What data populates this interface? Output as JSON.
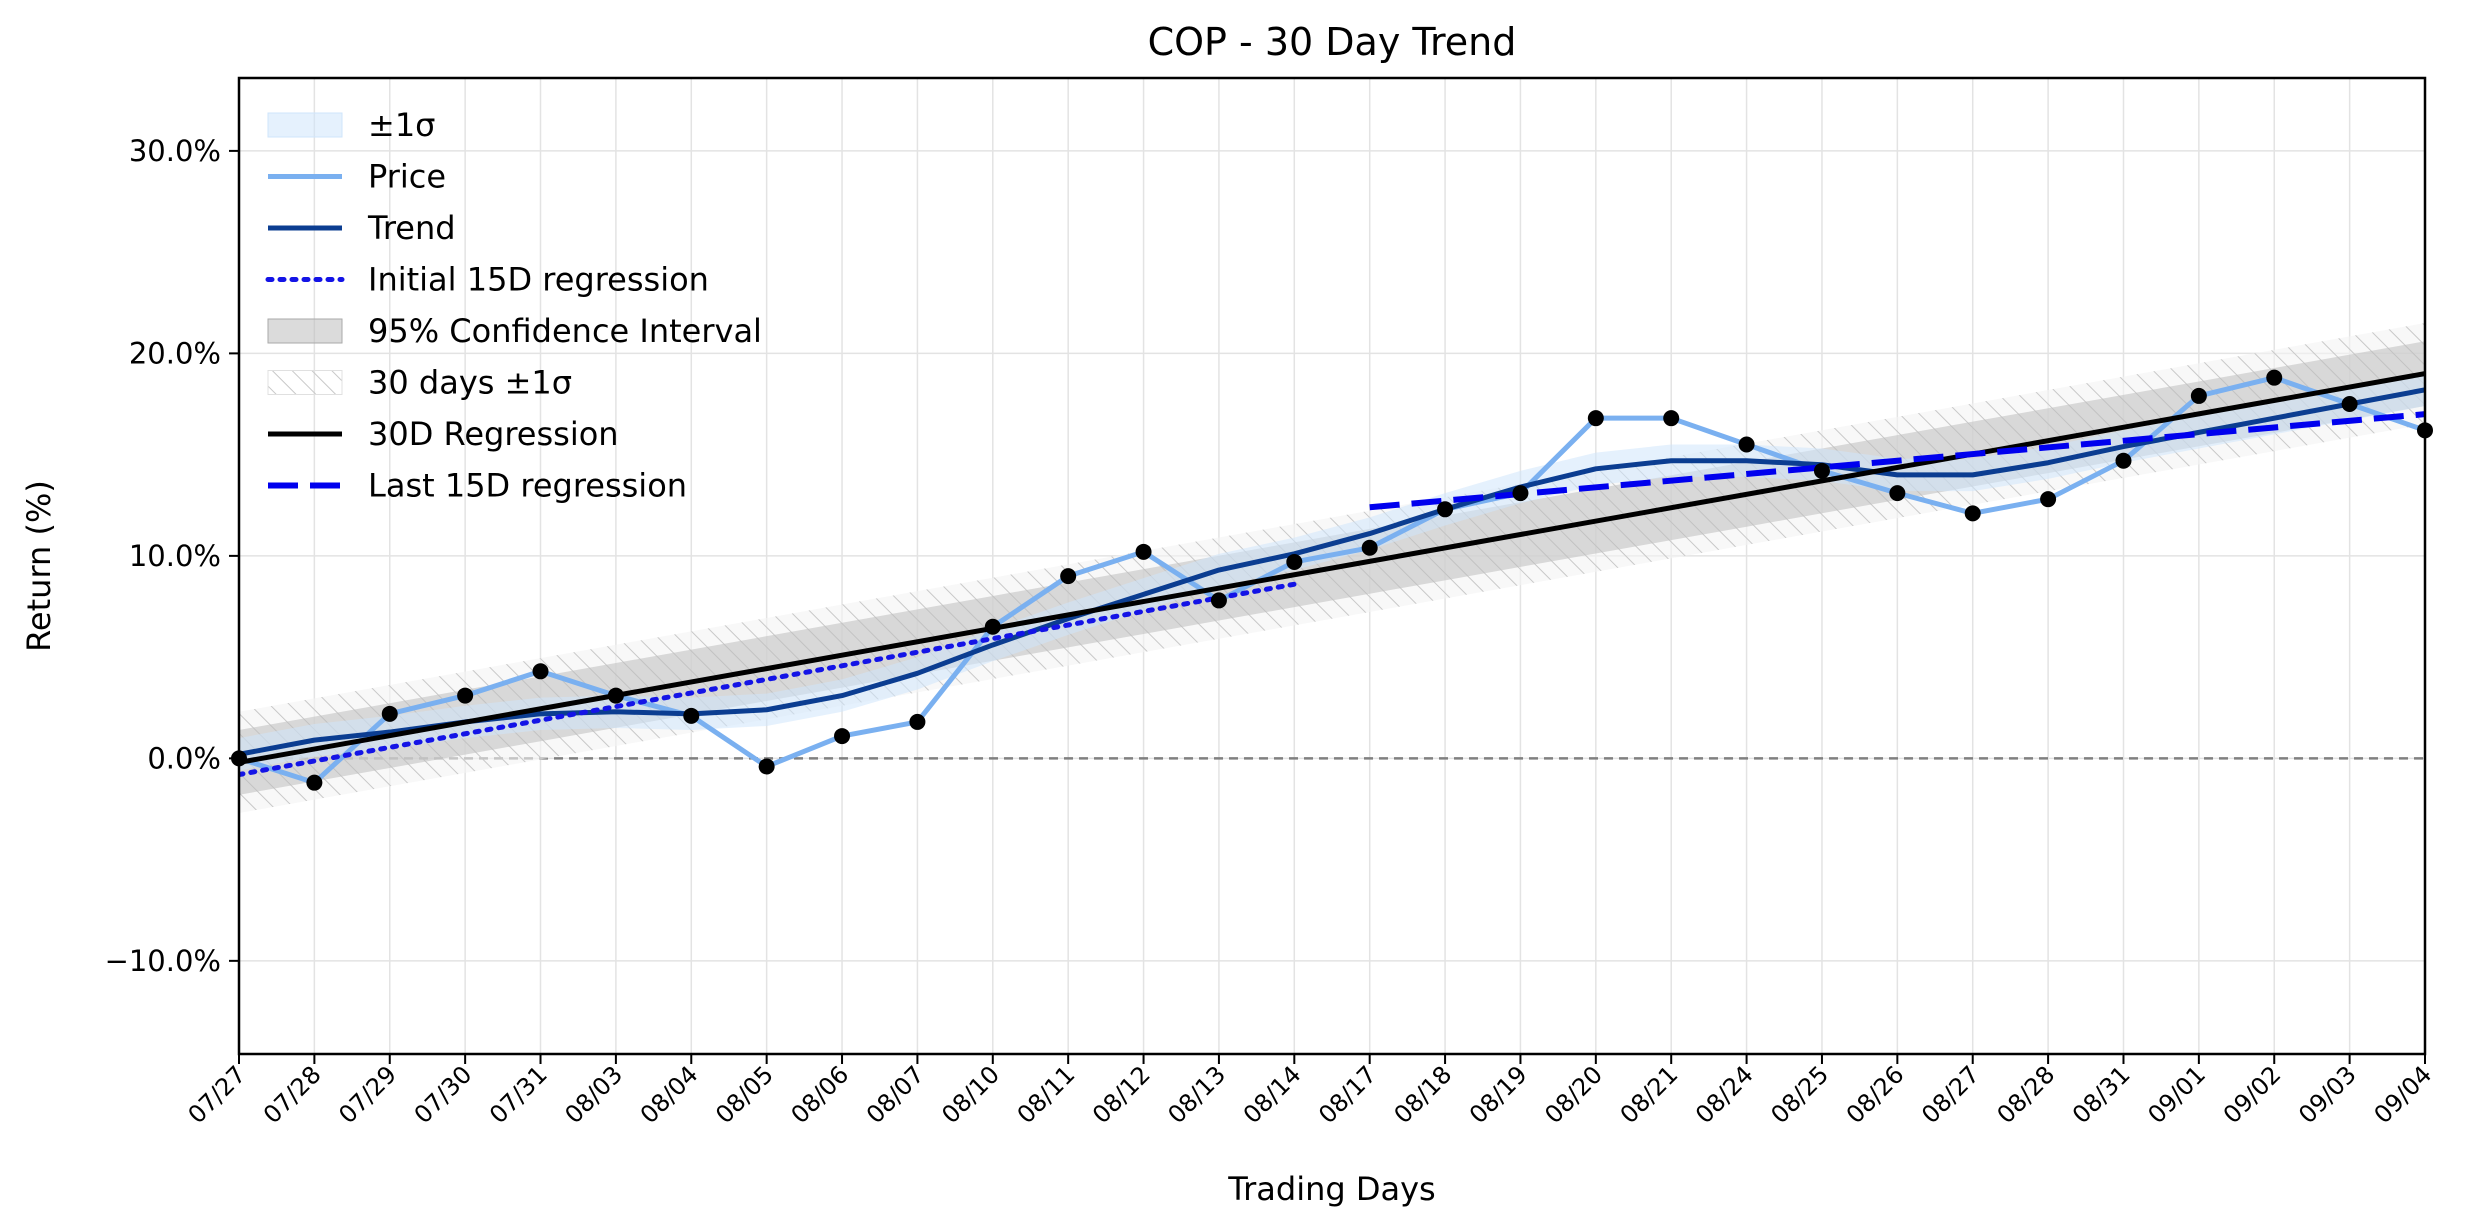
{
  "chart_data": {
    "type": "line",
    "title": "COP - 30 Day Trend",
    "xlabel": "Trading Days",
    "ylabel": "Return (%)",
    "ylim": [
      -14.6,
      33.6
    ],
    "yticks": [
      -10,
      0,
      10,
      20,
      30
    ],
    "ytick_labels": [
      "−10.0%",
      "0.0%",
      "10.0%",
      "20.0%",
      "30.0%"
    ],
    "grid": true,
    "legend_position": "upper-left",
    "categories": [
      "07/27",
      "07/28",
      "07/29",
      "07/30",
      "07/31",
      "08/03",
      "08/04",
      "08/05",
      "08/06",
      "08/07",
      "08/10",
      "08/11",
      "08/12",
      "08/13",
      "08/14",
      "08/17",
      "08/18",
      "08/19",
      "08/20",
      "08/21",
      "08/24",
      "08/25",
      "08/26",
      "08/27",
      "08/28",
      "08/31",
      "09/01",
      "09/02",
      "09/03",
      "09/04"
    ],
    "price": [
      0.0,
      -1.2,
      2.2,
      3.1,
      4.3,
      3.1,
      2.1,
      -0.4,
      1.1,
      1.8,
      6.5,
      9.0,
      10.2,
      7.8,
      9.7,
      10.4,
      12.3,
      13.1,
      16.8,
      16.8,
      15.5,
      14.2,
      13.1,
      12.1,
      12.8,
      14.7,
      17.9,
      18.8,
      17.5,
      16.2
    ],
    "trend": [
      0.2,
      0.9,
      1.3,
      1.8,
      2.2,
      2.3,
      2.2,
      2.4,
      3.1,
      4.2,
      5.6,
      6.9,
      8.1,
      9.3,
      10.1,
      11.1,
      12.3,
      13.4,
      14.3,
      14.7,
      14.7,
      14.5,
      14.0,
      14.0,
      14.6,
      15.4,
      16.1,
      16.8,
      17.5,
      18.2
    ],
    "sigma_1": 0.8,
    "regression_30d": {
      "start": -0.2,
      "end": 19.0,
      "ci_halfwidth": 1.6,
      "sigma_band": 2.5
    },
    "initial_15d": {
      "start": -0.8,
      "end": 8.6,
      "from_index": 0,
      "to_index": 14
    },
    "last_15d": {
      "start": 12.4,
      "end": 17.0,
      "from_index": 15,
      "to_index": 29
    },
    "colors": {
      "price": "#7ab0f0",
      "trend": "#0b3d91",
      "band": "#cfe5fb",
      "initial": "#1414e6",
      "last": "#0000ee",
      "regression": "#000000",
      "ci": "#bdbdbd",
      "hatch": "#c8c8c8",
      "zero_line": "#808080",
      "marker": "#000000"
    },
    "legend": [
      {
        "key": "band",
        "label": "±1σ"
      },
      {
        "key": "price",
        "label": "Price"
      },
      {
        "key": "trend",
        "label": "Trend"
      },
      {
        "key": "initial",
        "label": "Initial 15D regression"
      },
      {
        "key": "ci",
        "label": "95% Confidence Interval"
      },
      {
        "key": "hatch",
        "label": "30 days ±1σ"
      },
      {
        "key": "regression",
        "label": "30D Regression"
      },
      {
        "key": "last",
        "label": "Last 15D regression"
      }
    ]
  }
}
